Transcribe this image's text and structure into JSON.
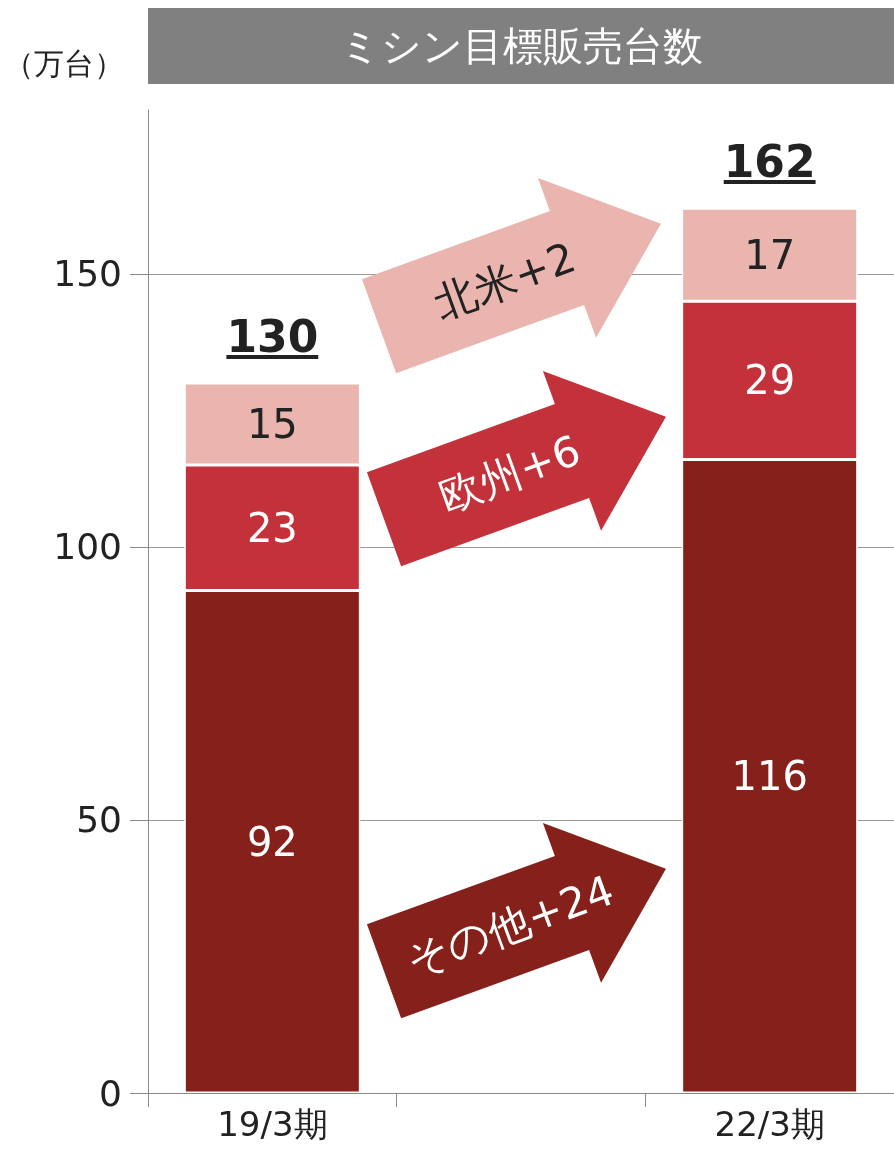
{
  "chart_data": {
    "type": "bar",
    "title": "ミシン目標販売台数",
    "ylabel": "（万台）",
    "categories": [
      "19/3期",
      null,
      "22/3期"
    ],
    "stacked": true,
    "series": [
      {
        "color": "#86201a",
        "values": [
          92,
          null,
          116
        ]
      },
      {
        "color": "#c3323a",
        "values": [
          23,
          null,
          29
        ]
      },
      {
        "color": "#e9b5ae",
        "values": [
          15,
          null,
          17
        ]
      }
    ],
    "totals": [
      "130",
      null,
      "162"
    ],
    "data_labels": true,
    "ylim": [
      0,
      180
    ],
    "yticks": [
      0,
      50,
      100,
      150
    ],
    "grid": "y",
    "annotations": [
      "北米+2",
      "欧州+6",
      "その他+24"
    ]
  }
}
